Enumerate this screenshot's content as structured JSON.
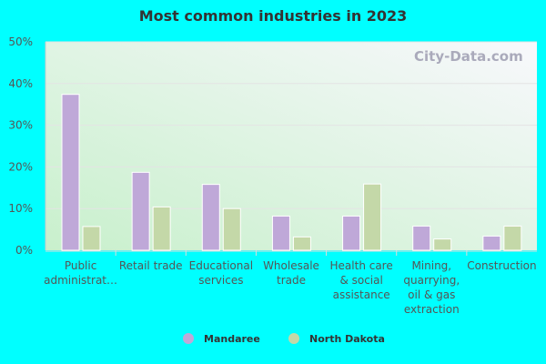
{
  "chart_data": {
    "type": "bar",
    "title": "Most common industries in 2023",
    "categories": [
      [
        "Public",
        "administrat…"
      ],
      [
        "Retail trade"
      ],
      [
        "Educational",
        "services"
      ],
      [
        "Wholesale",
        "trade"
      ],
      [
        "Health care",
        "& social",
        "assistance"
      ],
      [
        "Mining,",
        "quarrying,",
        "oil & gas",
        "extraction"
      ],
      [
        "Construction"
      ]
    ],
    "series": [
      {
        "name": "Mandaree",
        "color": "#bfa8d8",
        "values": [
          37.4,
          18.7,
          15.8,
          8.2,
          8.2,
          5.8,
          3.4
        ]
      },
      {
        "name": "North Dakota",
        "color": "#c4d8a8",
        "values": [
          5.7,
          10.4,
          10.0,
          3.2,
          15.9,
          2.7,
          5.8
        ]
      }
    ],
    "ylim": [
      0,
      50
    ],
    "yticks": [
      "0%",
      "10%",
      "20%",
      "30%",
      "40%",
      "50%"
    ],
    "grid": true,
    "legend": "bottom",
    "watermark": "City-Data.com"
  }
}
